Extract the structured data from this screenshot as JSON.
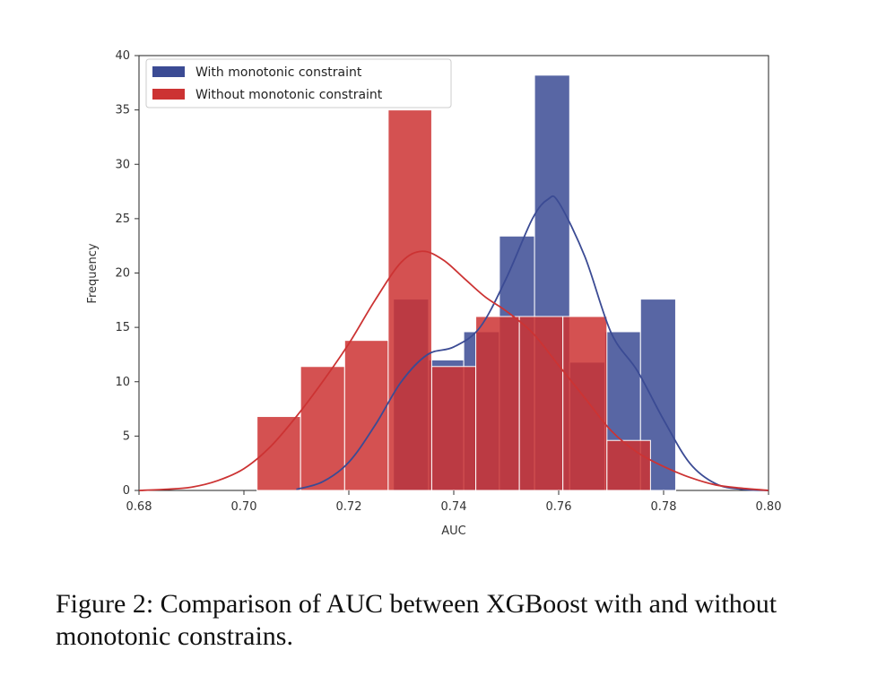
{
  "chart_data": {
    "type": "bar",
    "xlabel": "AUC",
    "ylabel": "Frequency",
    "xlim": [
      0.68,
      0.8
    ],
    "ylim": [
      0,
      40
    ],
    "xticks": [
      "0.68",
      "0.70",
      "0.72",
      "0.74",
      "0.76",
      "0.78",
      "0.80"
    ],
    "yticks": [
      "0",
      "5",
      "10",
      "15",
      "20",
      "25",
      "30",
      "35",
      "40"
    ],
    "grid": false,
    "legend_position": "top-left",
    "series": [
      {
        "name": "With monotonic constraint",
        "color": "#3b4b94",
        "bins": [
          {
            "x0": 0.7285,
            "x1": 0.7352,
            "y": 17.6
          },
          {
            "x0": 0.7352,
            "x1": 0.7419,
            "y": 12
          },
          {
            "x0": 0.7419,
            "x1": 0.7487,
            "y": 14.6
          },
          {
            "x0": 0.7487,
            "x1": 0.7554,
            "y": 23.4
          },
          {
            "x0": 0.7554,
            "x1": 0.7621,
            "y": 38.2
          },
          {
            "x0": 0.7621,
            "x1": 0.7688,
            "y": 11.8
          },
          {
            "x0": 0.7688,
            "x1": 0.7756,
            "y": 14.6
          },
          {
            "x0": 0.7756,
            "x1": 0.7823,
            "y": 17.6
          }
        ],
        "kde": [
          [
            0.71,
            0.1
          ],
          [
            0.715,
            0.8
          ],
          [
            0.72,
            2.6
          ],
          [
            0.725,
            6.0
          ],
          [
            0.73,
            10.0
          ],
          [
            0.735,
            12.5
          ],
          [
            0.74,
            13.2
          ],
          [
            0.745,
            15.0
          ],
          [
            0.75,
            19.5
          ],
          [
            0.755,
            25.0
          ],
          [
            0.758,
            26.8
          ],
          [
            0.76,
            26.5
          ],
          [
            0.765,
            21.5
          ],
          [
            0.77,
            14.5
          ],
          [
            0.775,
            11.0
          ],
          [
            0.78,
            6.5
          ],
          [
            0.785,
            2.5
          ],
          [
            0.79,
            0.6
          ],
          [
            0.795,
            0.1
          ],
          [
            0.8,
            0.0
          ]
        ]
      },
      {
        "name": "Without monotonic constraint",
        "color": "#cc3333",
        "bins": [
          {
            "x0": 0.7025,
            "x1": 0.7108,
            "y": 6.8
          },
          {
            "x0": 0.7108,
            "x1": 0.7192,
            "y": 11.4
          },
          {
            "x0": 0.7192,
            "x1": 0.7275,
            "y": 13.8
          },
          {
            "x0": 0.7275,
            "x1": 0.7358,
            "y": 35
          },
          {
            "x0": 0.7358,
            "x1": 0.7442,
            "y": 11.4
          },
          {
            "x0": 0.7442,
            "x1": 0.7525,
            "y": 16
          },
          {
            "x0": 0.7525,
            "x1": 0.7608,
            "y": 16
          },
          {
            "x0": 0.7608,
            "x1": 0.7692,
            "y": 16
          },
          {
            "x0": 0.7692,
            "x1": 0.7775,
            "y": 4.6
          }
        ],
        "kde": [
          [
            0.68,
            0.0
          ],
          [
            0.685,
            0.1
          ],
          [
            0.69,
            0.3
          ],
          [
            0.695,
            0.9
          ],
          [
            0.7,
            2.0
          ],
          [
            0.705,
            4.0
          ],
          [
            0.71,
            6.8
          ],
          [
            0.715,
            10.0
          ],
          [
            0.72,
            13.5
          ],
          [
            0.725,
            17.5
          ],
          [
            0.73,
            21.0
          ],
          [
            0.734,
            22.0
          ],
          [
            0.738,
            21.2
          ],
          [
            0.742,
            19.5
          ],
          [
            0.746,
            17.8
          ],
          [
            0.75,
            16.5
          ],
          [
            0.755,
            14.5
          ],
          [
            0.76,
            11.5
          ],
          [
            0.765,
            8.5
          ],
          [
            0.77,
            5.5
          ],
          [
            0.775,
            3.5
          ],
          [
            0.78,
            2.2
          ],
          [
            0.785,
            1.2
          ],
          [
            0.79,
            0.5
          ],
          [
            0.795,
            0.2
          ],
          [
            0.8,
            0.0
          ]
        ]
      }
    ]
  },
  "caption": "Figure 2: Comparison of AUC between XGBoost with and without monotonic constrains."
}
